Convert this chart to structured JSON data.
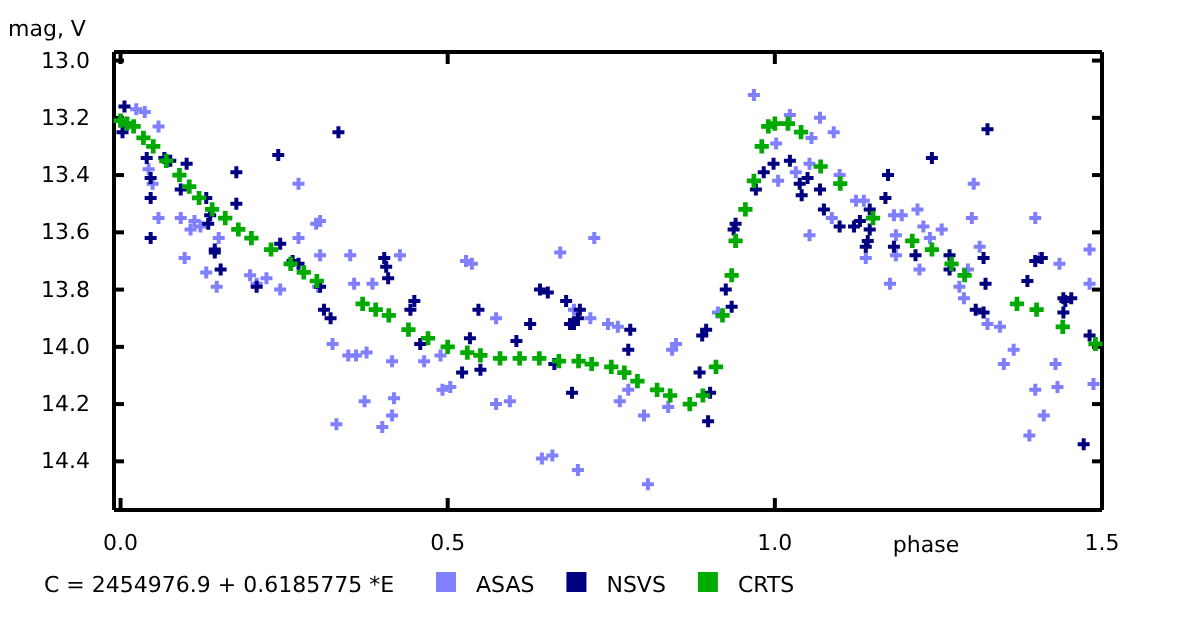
{
  "chart_data": {
    "type": "scatter",
    "xlabel": "phase",
    "ylabel": "mag, V",
    "xlim": [
      -0.01,
      1.5
    ],
    "ylim": [
      14.57,
      12.97
    ],
    "xticks": [
      {
        "value": 0,
        "label": "0.0"
      },
      0.5,
      {
        "value": 1,
        "label": "1.0"
      },
      1.5
    ],
    "yticks": [
      {
        "value": 13,
        "label": "13.0"
      },
      13.2,
      13.4,
      13.6,
      13.8,
      {
        "value": 14,
        "label": "14.0"
      },
      14.2,
      14.4
    ],
    "grid": false,
    "legend": "bottom",
    "marker": "cross",
    "annotations": [
      "C = 2454976.9 + 0.6185775 *E"
    ],
    "series": [
      {
        "name": "ASAS",
        "color": "#8080ff",
        "x": [
          0.006,
          0.024,
          0.037,
          0.058,
          0.043,
          0.049,
          0.058,
          0.092,
          0.107,
          0.113,
          0.122,
          0.098,
          0.131,
          0.15,
          0.147,
          0.198,
          0.208,
          0.223,
          0.244,
          0.272,
          0.272,
          0.299,
          0.305,
          0.305,
          0.302,
          0.351,
          0.357,
          0.427,
          0.385,
          0.528,
          0.537,
          0.672,
          0.724,
          0.693,
          0.324,
          0.348,
          0.36,
          0.376,
          0.415,
          0.33,
          0.373,
          0.4,
          0.415,
          0.418,
          0.464,
          0.489,
          0.492,
          0.504,
          0.574,
          0.574,
          0.595,
          0.644,
          0.66,
          0.699,
          0.718,
          0.745,
          0.76,
          0.763,
          0.776,
          0.8,
          0.837,
          0.806,
          0.843,
          0.849,
          0.913,
          0.968,
          1.002,
          1.005,
          1.023,
          1.032,
          1.056,
          1.053,
          1.069,
          1.09,
          1.099,
          1.124,
          1.136,
          1.087,
          1.053,
          1.139,
          1.182,
          1.185,
          1.194,
          1.218,
          1.227,
          1.237,
          1.255,
          1.304,
          1.301,
          1.313,
          1.295,
          1.289,
          1.282,
          1.221,
          1.176,
          1.185,
          1.398,
          1.405,
          1.435,
          1.481,
          1.481,
          1.325,
          1.344,
          1.365,
          1.35,
          1.398,
          1.411,
          1.389,
          1.429,
          1.432,
          1.487
        ],
        "values": [
          13.22,
          13.17,
          13.18,
          13.23,
          13.38,
          13.43,
          13.55,
          13.55,
          13.59,
          13.56,
          13.58,
          13.69,
          13.74,
          13.62,
          13.79,
          13.75,
          13.78,
          13.76,
          13.8,
          13.62,
          13.43,
          13.57,
          13.68,
          13.56,
          13.79,
          13.68,
          13.78,
          13.68,
          13.78,
          13.7,
          13.71,
          13.67,
          13.62,
          13.87,
          13.99,
          14.03,
          14.03,
          14.02,
          14.05,
          14.27,
          14.19,
          14.28,
          14.24,
          14.18,
          14.05,
          14.03,
          14.15,
          14.14,
          13.9,
          14.2,
          14.19,
          14.39,
          14.38,
          14.43,
          13.9,
          13.92,
          13.93,
          14.19,
          14.15,
          14.24,
          14.21,
          14.48,
          14.01,
          13.99,
          13.88,
          13.12,
          13.29,
          13.42,
          13.19,
          13.39,
          13.27,
          13.36,
          13.2,
          13.25,
          13.4,
          13.49,
          13.49,
          13.55,
          13.61,
          13.69,
          13.54,
          13.61,
          13.54,
          13.52,
          13.58,
          13.62,
          13.59,
          13.43,
          13.55,
          13.65,
          13.73,
          13.83,
          13.79,
          13.73,
          13.78,
          13.68,
          13.55,
          13.69,
          13.71,
          13.66,
          13.78,
          13.92,
          13.93,
          14.01,
          14.06,
          14.15,
          14.24,
          14.31,
          14.06,
          14.14,
          14.13
        ]
      },
      {
        "name": "NSVS",
        "color": "#000080",
        "x": [
          0.006,
          0.067,
          0.04,
          0.076,
          0.101,
          0.046,
          0.092,
          0.046,
          0.131,
          0.177,
          0.177,
          0.137,
          0.134,
          0.144,
          0.144,
          0.263,
          0.272,
          0.208,
          0.305,
          0.311,
          0.321,
          0.403,
          0.406,
          0.409,
          0.443,
          0.449,
          0.547,
          0.641,
          0.653,
          0.702,
          0.699,
          0.003,
          0.046,
          0.333,
          0.241,
          0.244,
          0.153,
          0.458,
          0.534,
          0.522,
          0.55,
          0.605,
          0.626,
          0.693,
          0.687,
          0.681,
          0.69,
          0.663,
          0.776,
          0.779,
          0.889,
          0.895,
          0.885,
          0.901,
          0.898,
          0.925,
          0.934,
          0.937,
          0.94,
          0.971,
          0.983,
          0.998,
          1.023,
          1.038,
          1.041,
          1.069,
          1.05,
          1.075,
          1.099,
          1.121,
          1.13,
          1.145,
          1.145,
          1.173,
          1.169,
          1.142,
          1.139,
          1.182,
          1.215,
          1.267,
          1.267,
          1.319,
          1.322,
          1.307,
          1.319,
          1.398,
          1.408,
          1.441,
          1.444,
          1.386,
          1.24,
          1.325,
          1.441,
          1.453,
          1.481,
          1.472
        ],
        "values": [
          13.16,
          13.34,
          13.34,
          13.35,
          13.36,
          13.48,
          13.45,
          13.41,
          13.48,
          13.39,
          13.5,
          13.54,
          13.57,
          13.66,
          13.67,
          13.7,
          13.71,
          13.79,
          13.79,
          13.87,
          13.9,
          13.69,
          13.72,
          13.76,
          13.87,
          13.84,
          13.87,
          13.8,
          13.81,
          13.87,
          13.9,
          13.25,
          13.62,
          13.25,
          13.33,
          13.64,
          13.73,
          13.99,
          13.97,
          14.09,
          14.08,
          13.98,
          13.92,
          13.92,
          13.92,
          13.84,
          14.16,
          14.06,
          14.01,
          13.94,
          13.96,
          13.94,
          14.09,
          14.16,
          14.26,
          13.8,
          13.86,
          13.59,
          13.57,
          13.45,
          13.39,
          13.36,
          13.35,
          13.43,
          13.47,
          13.45,
          13.41,
          13.52,
          13.58,
          13.58,
          13.56,
          13.59,
          13.52,
          13.4,
          13.48,
          13.63,
          13.65,
          13.65,
          13.68,
          13.68,
          13.73,
          13.69,
          13.78,
          13.87,
          13.88,
          13.7,
          13.69,
          13.83,
          13.84,
          13.77,
          13.34,
          13.24,
          13.88,
          13.83,
          13.96,
          14.34
        ]
      },
      {
        "name": "CRTS",
        "color": "#00aa00",
        "x": [
          0,
          0.01,
          0.02,
          0.035,
          0.05,
          0.07,
          0.09,
          0.105,
          0.12,
          0.14,
          0.16,
          0.18,
          0.2,
          0.23,
          0.26,
          0.28,
          0.3,
          0.37,
          0.39,
          0.41,
          0.44,
          0.47,
          0.5,
          0.53,
          0.55,
          0.58,
          0.61,
          0.64,
          0.67,
          0.7,
          0.72,
          0.75,
          0.77,
          0.79,
          0.82,
          0.84,
          0.87,
          0.89,
          0.91,
          0.92,
          0.934,
          0.94,
          0.955,
          0.968,
          0.98,
          0.99,
          1.0,
          1.02,
          1.04,
          1.07,
          1.1,
          1.15,
          1.21,
          1.24,
          1.27,
          1.29,
          1.37,
          1.4,
          1.44,
          1.49
        ],
        "values": [
          13.21,
          13.22,
          13.23,
          13.27,
          13.3,
          13.35,
          13.4,
          13.44,
          13.48,
          13.52,
          13.55,
          13.59,
          13.62,
          13.66,
          13.71,
          13.74,
          13.77,
          13.85,
          13.87,
          13.89,
          13.94,
          13.97,
          14.0,
          14.02,
          14.03,
          14.04,
          14.04,
          14.04,
          14.05,
          14.05,
          14.06,
          14.07,
          14.09,
          14.12,
          14.15,
          14.17,
          14.2,
          14.17,
          14.07,
          13.89,
          13.75,
          13.63,
          13.52,
          13.42,
          13.3,
          13.23,
          13.22,
          13.22,
          13.25,
          13.37,
          13.43,
          13.55,
          13.63,
          13.66,
          13.71,
          13.75,
          13.85,
          13.87,
          13.93,
          13.99
        ]
      }
    ]
  }
}
